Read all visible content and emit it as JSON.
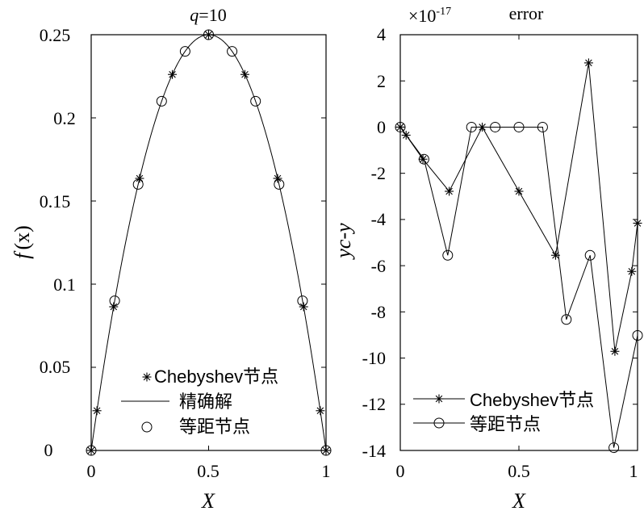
{
  "chart_data": [
    {
      "type": "line",
      "title_prefix": "q",
      "title_value": "=10",
      "xlabel": "X",
      "ylabel_f": "f",
      "ylabel_arg": "(x)",
      "xlim": [
        0,
        1
      ],
      "ylim": [
        0,
        0.25
      ],
      "xticks": [
        "0",
        "0.5",
        "1"
      ],
      "yticks": [
        "0",
        "0.05",
        "0.1",
        "0.15",
        "0.2",
        "0.25"
      ],
      "legend": [
        "Chebyshev节点",
        "精确解",
        "等距节点"
      ],
      "series": [
        {
          "name": "Chebyshev节点",
          "marker": "asterisk",
          "x": [
            0.0,
            0.0245,
            0.0955,
            0.2061,
            0.3455,
            0.5,
            0.6545,
            0.7939,
            0.9045,
            0.9755,
            1.0
          ],
          "y": [
            0.0,
            0.0239,
            0.0864,
            0.1636,
            0.2261,
            0.25,
            0.2261,
            0.1636,
            0.0864,
            0.0239,
            0.0
          ]
        },
        {
          "name": "精确解",
          "marker": "none",
          "function": "x(1-x)",
          "x": [
            0.0,
            0.1,
            0.2,
            0.3,
            0.4,
            0.5,
            0.6,
            0.7,
            0.8,
            0.9,
            1.0
          ],
          "y": [
            0.0,
            0.09,
            0.16,
            0.21,
            0.24,
            0.25,
            0.24,
            0.21,
            0.16,
            0.09,
            0.0
          ]
        },
        {
          "name": "等距节点",
          "marker": "circle",
          "x": [
            0.0,
            0.1,
            0.2,
            0.3,
            0.4,
            0.5,
            0.6,
            0.7,
            0.8,
            0.9,
            1.0
          ],
          "y": [
            0.0,
            0.09,
            0.16,
            0.21,
            0.24,
            0.25,
            0.24,
            0.21,
            0.16,
            0.09,
            0.0
          ]
        }
      ]
    },
    {
      "type": "line",
      "title": "error",
      "scale_base": "×10",
      "scale_exp": "-17",
      "xlabel": "X",
      "ylabel": "yc-y",
      "xlim": [
        0,
        1
      ],
      "ylim": [
        -14,
        4
      ],
      "xticks": [
        "0",
        "0.5",
        "1"
      ],
      "yticks": [
        "-14",
        "-12",
        "-10",
        "-8",
        "-6",
        "-4",
        "-2",
        "0",
        "2",
        "4"
      ],
      "legend": [
        "Chebyshev节点",
        "等距节点"
      ],
      "series": [
        {
          "name": "Chebyshev节点",
          "marker": "asterisk",
          "x": [
            0.0,
            0.0245,
            0.0955,
            0.2061,
            0.3455,
            0.5,
            0.6545,
            0.7939,
            0.9045,
            0.9755,
            1.0
          ],
          "y": [
            0.0,
            -0.35,
            -1.39,
            -2.78,
            0.0,
            -2.78,
            -5.55,
            2.78,
            -9.71,
            -6.25,
            -4.16
          ]
        },
        {
          "name": "等距节点",
          "marker": "circle",
          "x": [
            0.0,
            0.1,
            0.2,
            0.3,
            0.4,
            0.5,
            0.6,
            0.7,
            0.8,
            0.9,
            1.0
          ],
          "y": [
            0.0,
            -1.39,
            -5.55,
            0.0,
            0.0,
            0.0,
            0.0,
            -8.33,
            -5.55,
            -13.88,
            -9.02
          ]
        }
      ]
    }
  ]
}
